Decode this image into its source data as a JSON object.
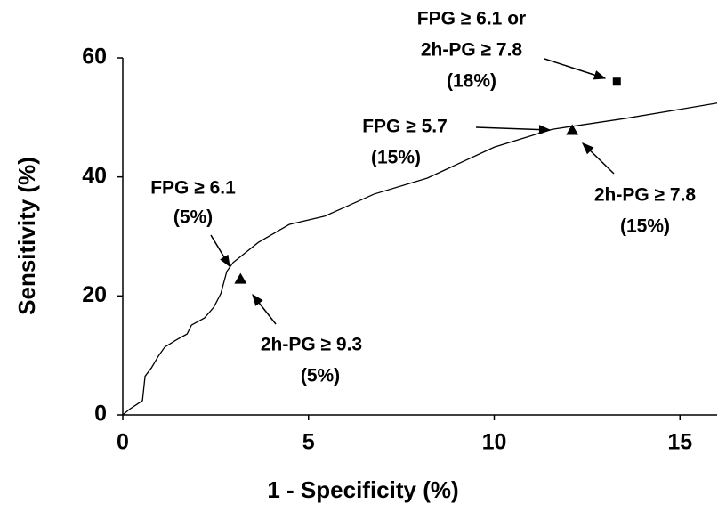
{
  "chart_data": {
    "type": "line",
    "x_label": "1 - Specificity (%)",
    "y_label": "Sensitivity (%)",
    "xlim": [
      0,
      16
    ],
    "ylim": [
      0,
      60
    ],
    "xticks": [
      0,
      5,
      10,
      15
    ],
    "yticks": [
      0,
      20,
      40,
      60
    ],
    "grid": false,
    "series": [
      {
        "color": "#000000",
        "marker": "none",
        "x": [
          0,
          0.17,
          0.53,
          0.6,
          0.77,
          0.96,
          1.13,
          1.44,
          1.73,
          1.85,
          2.2,
          2.45,
          2.64,
          2.8,
          2.97,
          3.65,
          4.48,
          5.44,
          6.76,
          8.2,
          10,
          11.56,
          13.5,
          16
        ],
        "values": [
          0,
          0.9,
          2.4,
          6.5,
          7.9,
          9.9,
          11.4,
          12.6,
          13.6,
          15.1,
          16.3,
          18.1,
          20.4,
          24.1,
          25.6,
          29,
          32,
          33.4,
          37.1,
          39.8,
          45,
          48,
          49.8,
          52.4
        ]
      },
      {
        "color": "#000000",
        "marker": "triangle",
        "x": [
          3.17,
          12.1
        ],
        "values": [
          22.8,
          47.8
        ]
      },
      {
        "color": "#000000",
        "marker": "square",
        "x": [
          13.3
        ],
        "values": [
          56
        ]
      }
    ],
    "annotations": [
      {
        "lines": [
          "FPG ≥ 6.1 or",
          "2h-PG ≥ 7.8",
          "(18%)"
        ]
      },
      {
        "lines": [
          "FPG ≥ 5.7",
          "(15%)"
        ]
      },
      {
        "lines": [
          "2h-PG ≥ 7.8",
          "(15%)"
        ]
      },
      {
        "lines": [
          "FPG ≥ 6.1",
          "(5%)"
        ]
      },
      {
        "lines": [
          "2h-PG ≥ 9.3",
          "(5%)"
        ]
      }
    ]
  }
}
